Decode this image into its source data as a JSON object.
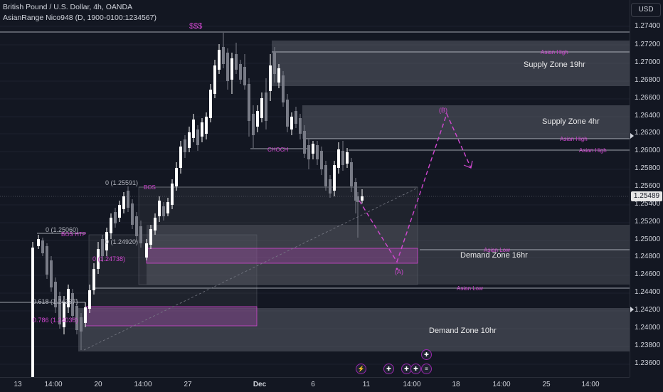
{
  "header": {
    "title": "British Pound / U.S. Dollar, 4h, OANDA",
    "indicator": "AsianRange Nico948 (D, 1900-0100:1234567)"
  },
  "currency_button": "USD",
  "price_axis": {
    "ticks": [
      "1.27400",
      "1.27200",
      "1.27000",
      "1.26800",
      "1.26600",
      "1.26400",
      "1.26200",
      "1.26000",
      "1.25800",
      "1.25600",
      "1.25400",
      "1.25200",
      "1.25000",
      "1.24800",
      "1.24600",
      "1.24400",
      "1.24200",
      "1.24000",
      "1.23800",
      "1.23600"
    ],
    "current_price": "1.25489"
  },
  "time_axis": {
    "ticks": [
      "13",
      "14:00",
      "20",
      "14:00",
      "27",
      "Dec",
      "6",
      "11",
      "14:00",
      "18",
      "14:00",
      "25",
      "14:00"
    ]
  },
  "zones": {
    "supply_19": "Supply Zone 19hr",
    "supply_4": "Supply Zone 4hr",
    "demand_16": "Demand Zone 16hr",
    "demand_10": "Demand Zone 10hr"
  },
  "labels": {
    "dollars": "$$$",
    "asian_high_1": "Asian High",
    "asian_high_2": "Asian High",
    "asian_high_3": "Asian High",
    "asian_low_1": "Asian Low",
    "asian_low_2": "Asian Low",
    "choch": "CHOCH",
    "bos": "BOS",
    "bos_htp": "BOS HTP",
    "fib_0_a": "0 (1.25591)",
    "fib_0_b": "0 (1.25060)",
    "fib_0_c": "0 (1.24920)",
    "fib_0_d": "0 (1.24738)",
    "fib_618": "0.618 (1.24337)",
    "fib_786": "0.786 (1.24038)",
    "wave_a": "(A)",
    "wave_b": "(B)"
  },
  "colors": {
    "background": "#131722",
    "bull": "#ffffff",
    "bear": "#787b86",
    "accent_pink": "#d147d1",
    "zone_grey": "#4a4d57"
  }
}
